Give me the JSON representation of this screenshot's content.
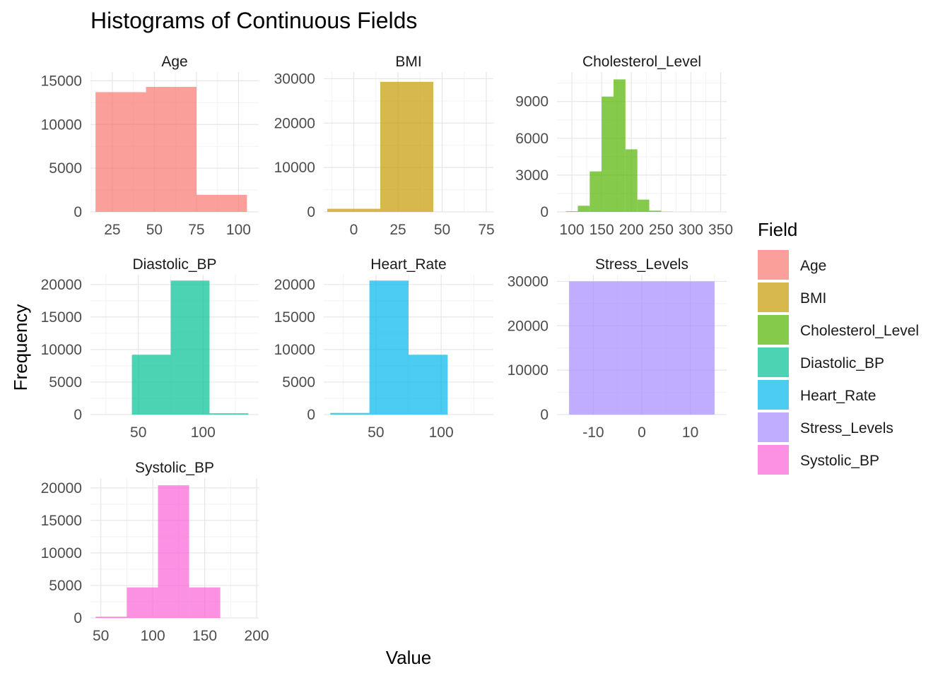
{
  "chart_data": {
    "type": "bar",
    "title": "Histograms of Continuous Fields",
    "xlabel": "Value",
    "ylabel": "Frequency",
    "grid": true,
    "legend": {
      "title": "Field",
      "position": "right"
    },
    "panels": [
      {
        "name": "Age",
        "color": "#F8766D",
        "xlim": [
          12,
          112
        ],
        "xticks": [
          25,
          50,
          75,
          100
        ],
        "ylim": [
          0,
          16000
        ],
        "yticks": [
          0,
          5000,
          10000,
          15000
        ],
        "bins": [
          {
            "x0": 15,
            "x1": 45,
            "count": 13700
          },
          {
            "x0": 45,
            "x1": 75,
            "count": 14300
          },
          {
            "x0": 75,
            "x1": 105,
            "count": 1950
          }
        ]
      },
      {
        "name": "BMI",
        "color": "#C49A00",
        "xlim": [
          -17,
          79
        ],
        "xticks": [
          0,
          25,
          50,
          75
        ],
        "ylim": [
          0,
          31500
        ],
        "yticks": [
          0,
          10000,
          20000,
          30000
        ],
        "bins": [
          {
            "x0": -15,
            "x1": 15,
            "count": 700
          },
          {
            "x0": 15,
            "x1": 45,
            "count": 29300
          }
        ]
      },
      {
        "name": "Cholesterol_Level",
        "color": "#53B400",
        "xlim": [
          75,
          360
        ],
        "xticks": [
          100,
          150,
          200,
          250,
          300,
          350
        ],
        "ylim": [
          0,
          11400
        ],
        "yticks": [
          0,
          3000,
          6000,
          9000
        ],
        "bins": [
          {
            "x0": 90,
            "x1": 110,
            "count": 50
          },
          {
            "x0": 110,
            "x1": 130,
            "count": 500
          },
          {
            "x0": 130,
            "x1": 150,
            "count": 3300
          },
          {
            "x0": 150,
            "x1": 170,
            "count": 9400
          },
          {
            "x0": 170,
            "x1": 190,
            "count": 10800
          },
          {
            "x0": 190,
            "x1": 210,
            "count": 5100
          },
          {
            "x0": 210,
            "x1": 230,
            "count": 1000
          },
          {
            "x0": 230,
            "x1": 250,
            "count": 100
          },
          {
            "x0": 250,
            "x1": 270,
            "count": 15
          }
        ]
      },
      {
        "name": "Diastolic_BP",
        "color": "#00C094",
        "xlim": [
          13,
          143
        ],
        "xticks": [
          50,
          100
        ],
        "ylim": [
          0,
          21500
        ],
        "yticks": [
          0,
          5000,
          10000,
          15000,
          20000
        ],
        "bins": [
          {
            "x0": 45,
            "x1": 75,
            "count": 9200
          },
          {
            "x0": 75,
            "x1": 105,
            "count": 20600
          },
          {
            "x0": 105,
            "x1": 135,
            "count": 200
          }
        ]
      },
      {
        "name": "Heart_Rate",
        "color": "#00B6EB",
        "xlim": [
          10,
          140
        ],
        "xticks": [
          50,
          100
        ],
        "ylim": [
          0,
          21500
        ],
        "yticks": [
          0,
          5000,
          10000,
          15000,
          20000
        ],
        "bins": [
          {
            "x0": 15,
            "x1": 45,
            "count": 250
          },
          {
            "x0": 45,
            "x1": 75,
            "count": 20600
          },
          {
            "x0": 75,
            "x1": 105,
            "count": 9200
          }
        ]
      },
      {
        "name": "Stress_Levels",
        "color": "#A58AFF",
        "xlim": [
          -17.5,
          17.5
        ],
        "xticks": [
          -10,
          0,
          10
        ],
        "ylim": [
          0,
          31500
        ],
        "yticks": [
          0,
          10000,
          20000,
          30000
        ],
        "bins": [
          {
            "x0": -15,
            "x1": 15,
            "count": 30000
          }
        ]
      },
      {
        "name": "Systolic_BP",
        "color": "#FB61D7",
        "xlim": [
          40,
          202
        ],
        "xticks": [
          50,
          100,
          150,
          200
        ],
        "ylim": [
          0,
          21500
        ],
        "yticks": [
          0,
          5000,
          10000,
          15000,
          20000
        ],
        "bins": [
          {
            "x0": 45,
            "x1": 75,
            "count": 200
          },
          {
            "x0": 75,
            "x1": 105,
            "count": 4700
          },
          {
            "x0": 105,
            "x1": 135,
            "count": 20400
          },
          {
            "x0": 135,
            "x1": 165,
            "count": 4700
          }
        ]
      }
    ]
  }
}
